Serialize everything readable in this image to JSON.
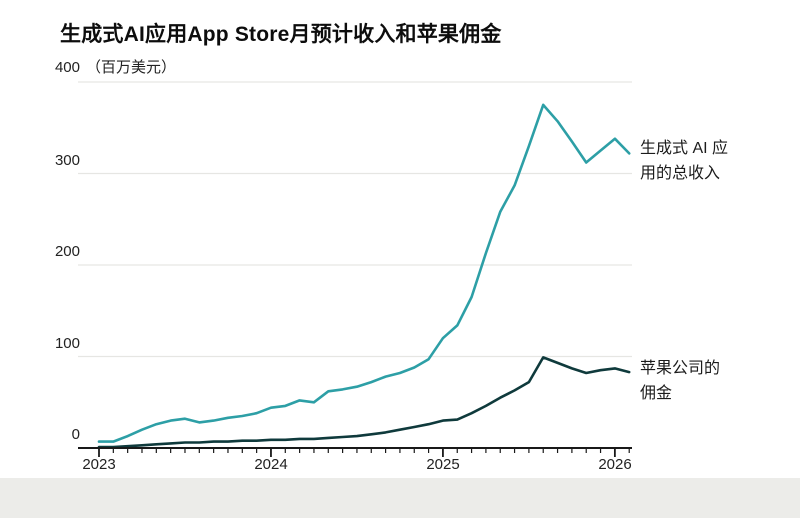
{
  "title": "生成式AI应用App Store月预计收入和苹果佣金",
  "y_axis": {
    "unit_label": "（百万美元）",
    "labels": [
      "400",
      "300",
      "200",
      "100",
      "0"
    ]
  },
  "x_axis": {
    "years": [
      "2023",
      "2024",
      "2025",
      "2026"
    ]
  },
  "annotations": {
    "revenue_line1": "生成式 AI 应",
    "revenue_line2": "用的总收入",
    "commission_line1": "苹果公司的",
    "commission_line2": "佣金"
  },
  "colors": {
    "revenue": "#2d9fa6",
    "commission": "#0f3a3c",
    "grid": "#e6e6e3",
    "axis": "#191919",
    "footer_bg": "#ecece9",
    "text": "#1f1f1f"
  },
  "chart_data": {
    "type": "line",
    "title": "生成式AI应用App Store月预计收入和苹果佣金",
    "ylabel": "百万美元",
    "ylim": [
      0,
      400
    ],
    "y_ticks": [
      0,
      100,
      200,
      300,
      400
    ],
    "grid": "horizontal",
    "legend_position": "right-of-line-ends",
    "x_tick_labels": [
      "2023",
      "2024",
      "2025",
      "2026"
    ],
    "x": [
      "2023-01",
      "2023-02",
      "2023-03",
      "2023-04",
      "2023-05",
      "2023-06",
      "2023-07",
      "2023-08",
      "2023-09",
      "2023-10",
      "2023-11",
      "2023-12",
      "2024-01",
      "2024-02",
      "2024-03",
      "2024-04",
      "2024-05",
      "2024-06",
      "2024-07",
      "2024-08",
      "2024-09",
      "2024-10",
      "2024-11",
      "2024-12",
      "2025-01",
      "2025-02",
      "2025-03",
      "2025-04",
      "2025-05",
      "2025-06",
      "2025-07",
      "2025-08",
      "2025-09",
      "2025-10",
      "2025-11",
      "2025-12",
      "2026-01",
      "2026-02"
    ],
    "series": [
      {
        "name": "生成式 AI 应用的总收入",
        "color": "#2d9fa6",
        "values": [
          7,
          7,
          13,
          20,
          26,
          30,
          32,
          28,
          30,
          33,
          35,
          38,
          44,
          46,
          52,
          50,
          62,
          64,
          67,
          72,
          78,
          82,
          88,
          97,
          120,
          134,
          165,
          213,
          258,
          287,
          330,
          375,
          357,
          335,
          312,
          325,
          338,
          322
        ]
      },
      {
        "name": "苹果公司的佣金",
        "color": "#0f3a3c",
        "values": [
          1,
          1,
          2,
          3,
          4,
          5,
          6,
          6,
          7,
          7,
          8,
          8,
          9,
          9,
          10,
          10,
          11,
          12,
          13,
          15,
          17,
          20,
          23,
          26,
          30,
          31,
          38,
          46,
          55,
          63,
          72,
          99,
          93,
          87,
          82,
          85,
          87,
          83
        ]
      }
    ]
  }
}
